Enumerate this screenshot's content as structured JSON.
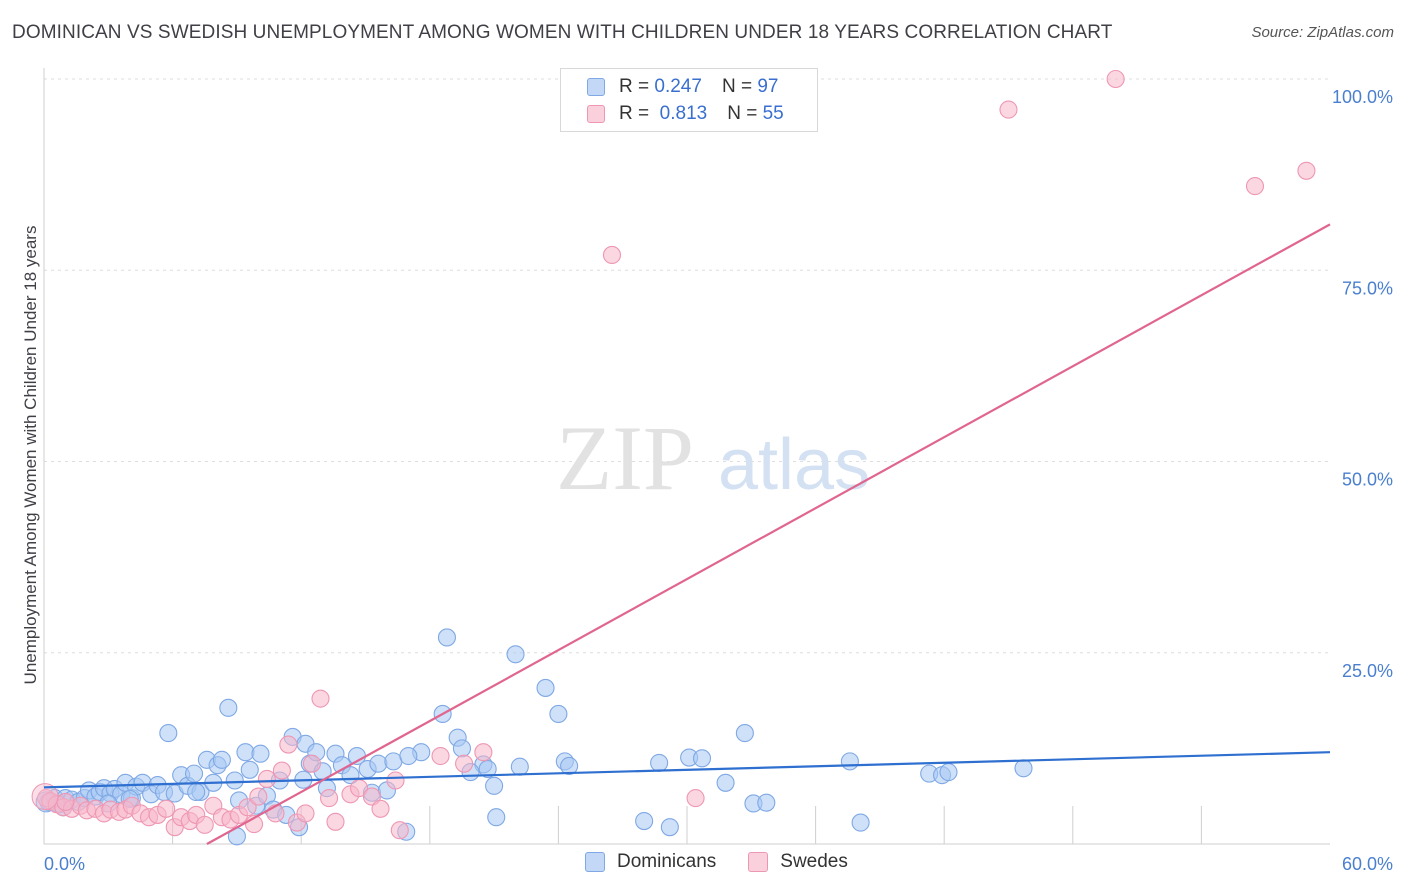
{
  "title": "DOMINICAN VS SWEDISH UNEMPLOYMENT AMONG WOMEN WITH CHILDREN UNDER 18 YEARS CORRELATION CHART",
  "source": "Source: ZipAtlas.com",
  "watermark": {
    "zip": "ZIP",
    "atlas": "atlas"
  },
  "legend": {
    "r_label": "R =",
    "n_label": "N =",
    "dominicans": {
      "r": "0.247",
      "n": "97",
      "color": "#a8c8f4"
    },
    "swedes": {
      "r": "0.813",
      "n": "55",
      "color": "#f7b7cb"
    }
  },
  "bottom_legend": {
    "dominicans": "Dominicans",
    "swedes": "Swedes"
  },
  "chart_data": {
    "type": "scatter",
    "xlabel": "",
    "ylabel": "Unemployment Among Women with Children Under 18 years",
    "xlim": [
      0,
      60
    ],
    "ylim": [
      0,
      100
    ],
    "x_tick_labels": [
      {
        "value": 0,
        "label": "0.0%"
      },
      {
        "value": 60,
        "label": "60.0%"
      }
    ],
    "y_tick_labels": [
      {
        "value": 25,
        "label": "25.0%"
      },
      {
        "value": 50,
        "label": "50.0%"
      },
      {
        "value": 75,
        "label": "75.0%"
      },
      {
        "value": 100,
        "label": "100.0%"
      }
    ],
    "series": [
      {
        "name": "Dominicans",
        "color": "#a8c8f4",
        "stroke": "#7fa8e4",
        "line_color": "#2e6fd0",
        "trend": {
          "x0": 0,
          "y0": 7.4,
          "x1": 60,
          "y1": 12.0
        },
        "points": [
          [
            0.2,
            5.5
          ],
          [
            0.5,
            6.0
          ],
          [
            0.7,
            5.2
          ],
          [
            1.0,
            6.0
          ],
          [
            1.3,
            5.8
          ],
          [
            1.6,
            5.5
          ],
          [
            1.9,
            6.0
          ],
          [
            2.1,
            7.0
          ],
          [
            2.4,
            6.2
          ],
          [
            2.6,
            6.8
          ],
          [
            2.8,
            7.3
          ],
          [
            3.1,
            6.6
          ],
          [
            3.3,
            7.2
          ],
          [
            3.6,
            6.5
          ],
          [
            3.8,
            8.0
          ],
          [
            4.1,
            6.0
          ],
          [
            4.3,
            7.5
          ],
          [
            4.6,
            8.0
          ],
          [
            5.0,
            6.5
          ],
          [
            5.3,
            7.7
          ],
          [
            5.6,
            6.8
          ],
          [
            5.8,
            14.5
          ],
          [
            6.1,
            6.6
          ],
          [
            6.4,
            9.0
          ],
          [
            6.7,
            7.6
          ],
          [
            7.0,
            9.2
          ],
          [
            7.3,
            6.8
          ],
          [
            7.6,
            11.0
          ],
          [
            7.9,
            8.0
          ],
          [
            8.1,
            10.3
          ],
          [
            8.3,
            11.0
          ],
          [
            8.6,
            17.8
          ],
          [
            8.9,
            8.3
          ],
          [
            9.1,
            5.7
          ],
          [
            9.4,
            12.0
          ],
          [
            9.6,
            9.7
          ],
          [
            9.9,
            5.0
          ],
          [
            10.1,
            11.8
          ],
          [
            10.4,
            6.3
          ],
          [
            10.7,
            4.5
          ],
          [
            11.0,
            8.3
          ],
          [
            11.3,
            3.8
          ],
          [
            11.6,
            14.0
          ],
          [
            11.9,
            2.2
          ],
          [
            12.2,
            13.1
          ],
          [
            12.4,
            10.5
          ],
          [
            12.7,
            12.0
          ],
          [
            13.0,
            9.5
          ],
          [
            13.2,
            7.3
          ],
          [
            13.6,
            11.8
          ],
          [
            13.9,
            10.3
          ],
          [
            14.3,
            9.0
          ],
          [
            14.6,
            11.5
          ],
          [
            15.1,
            9.8
          ],
          [
            15.3,
            6.7
          ],
          [
            15.6,
            10.5
          ],
          [
            16.3,
            10.8
          ],
          [
            16.9,
            1.6
          ],
          [
            17.6,
            12.0
          ],
          [
            17.0,
            11.5
          ],
          [
            18.6,
            17.0
          ],
          [
            18.8,
            27.0
          ],
          [
            19.3,
            13.9
          ],
          [
            19.5,
            12.5
          ],
          [
            20.5,
            10.4
          ],
          [
            20.7,
            9.8
          ],
          [
            21.0,
            7.6
          ],
          [
            21.1,
            3.5
          ],
          [
            22.0,
            24.8
          ],
          [
            22.2,
            10.1
          ],
          [
            23.4,
            20.4
          ],
          [
            24.0,
            17.0
          ],
          [
            24.3,
            10.8
          ],
          [
            24.5,
            10.2
          ],
          [
            28.0,
            3.0
          ],
          [
            28.7,
            10.6
          ],
          [
            29.2,
            2.2
          ],
          [
            30.1,
            11.3
          ],
          [
            30.7,
            11.2
          ],
          [
            31.8,
            8.0
          ],
          [
            32.7,
            14.5
          ],
          [
            33.1,
            5.3
          ],
          [
            33.7,
            5.4
          ],
          [
            37.6,
            10.8
          ],
          [
            38.1,
            2.8
          ],
          [
            41.3,
            9.2
          ],
          [
            41.9,
            9.0
          ],
          [
            42.2,
            9.4
          ],
          [
            45.7,
            9.9
          ],
          [
            4.0,
            5.9
          ],
          [
            0.9,
            4.8
          ],
          [
            12.1,
            8.4
          ],
          [
            7.1,
            6.8
          ],
          [
            9.0,
            1.0
          ],
          [
            3.0,
            5.3
          ],
          [
            16.0,
            7.0
          ],
          [
            19.9,
            9.4
          ]
        ]
      },
      {
        "name": "Swedes",
        "color": "#f7b7cb",
        "stroke": "#ee97b3",
        "line_color": "#e0658f",
        "trend": {
          "x0": 7.6,
          "y0": 0,
          "x1": 60,
          "y1": 81.0
        },
        "points": [
          [
            0.1,
            6.0
          ],
          [
            0.3,
            5.6
          ],
          [
            0.6,
            5.2
          ],
          [
            0.9,
            4.8
          ],
          [
            1.3,
            4.6
          ],
          [
            1.7,
            5.0
          ],
          [
            2.0,
            4.4
          ],
          [
            2.4,
            4.6
          ],
          [
            2.8,
            4.0
          ],
          [
            3.1,
            4.5
          ],
          [
            3.5,
            4.2
          ],
          [
            3.8,
            4.5
          ],
          [
            4.1,
            5.0
          ],
          [
            4.5,
            4.0
          ],
          [
            4.9,
            3.5
          ],
          [
            5.3,
            3.8
          ],
          [
            5.7,
            4.6
          ],
          [
            6.1,
            2.2
          ],
          [
            6.4,
            3.5
          ],
          [
            6.8,
            3.0
          ],
          [
            7.1,
            3.8
          ],
          [
            7.5,
            2.5
          ],
          [
            7.9,
            5.0
          ],
          [
            8.3,
            3.5
          ],
          [
            8.7,
            3.2
          ],
          [
            9.1,
            3.8
          ],
          [
            9.5,
            4.8
          ],
          [
            9.8,
            2.6
          ],
          [
            10.0,
            6.2
          ],
          [
            10.4,
            8.5
          ],
          [
            10.8,
            4.0
          ],
          [
            11.1,
            9.6
          ],
          [
            11.4,
            13.0
          ],
          [
            11.8,
            2.8
          ],
          [
            12.2,
            4.0
          ],
          [
            12.5,
            10.5
          ],
          [
            12.9,
            19.0
          ],
          [
            13.3,
            6.0
          ],
          [
            13.6,
            2.9
          ],
          [
            14.3,
            6.5
          ],
          [
            14.7,
            7.3
          ],
          [
            15.3,
            6.2
          ],
          [
            15.7,
            4.6
          ],
          [
            16.4,
            8.3
          ],
          [
            16.6,
            1.8
          ],
          [
            18.5,
            11.5
          ],
          [
            19.6,
            10.5
          ],
          [
            20.5,
            12.0
          ],
          [
            26.5,
            77.0
          ],
          [
            1.0,
            5.5
          ],
          [
            30.4,
            6.0
          ],
          [
            45.0,
            96.0
          ],
          [
            50.0,
            100.0
          ],
          [
            56.5,
            86.0
          ],
          [
            58.9,
            88.0
          ]
        ]
      }
    ]
  }
}
